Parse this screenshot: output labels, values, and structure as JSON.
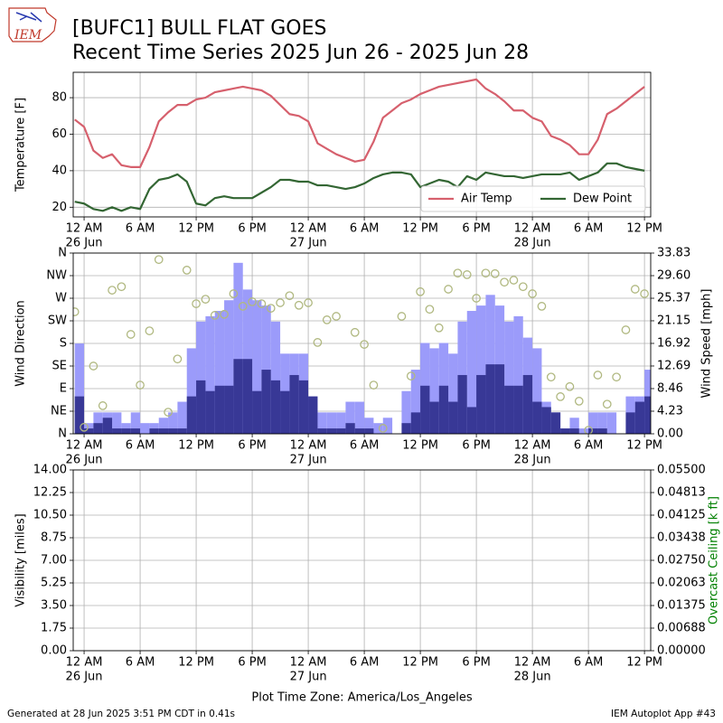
{
  "title": "[BUFC1] BULL FLAT GOES",
  "subtitle": "Recent Time Series 2025 Jun 26 - 2025 Jun 28",
  "logo_text": "IEM",
  "footer_left": "Generated at 28 Jun 2025 3:51 PM CDT in 0.41s",
  "footer_right": "IEM Autoplot App #43",
  "chart_data": [
    {
      "type": "line",
      "ylabel": "Temperature [F]",
      "xlim": [
        "2025-06-25 22:50",
        "2025-06-28 12:40"
      ],
      "xticks": [
        {
          "value": "2025-06-26 00:00",
          "label": "12 AM",
          "sublabel": "26 Jun"
        },
        {
          "value": "2025-06-26 06:00",
          "label": "6 AM"
        },
        {
          "value": "2025-06-26 12:00",
          "label": "12 PM"
        },
        {
          "value": "2025-06-26 18:00",
          "label": "6 PM"
        },
        {
          "value": "2025-06-27 00:00",
          "label": "12 AM",
          "sublabel": "27 Jun"
        },
        {
          "value": "2025-06-27 06:00",
          "label": "6 AM"
        },
        {
          "value": "2025-06-27 12:00",
          "label": "12 PM"
        },
        {
          "value": "2025-06-27 18:00",
          "label": "6 PM"
        },
        {
          "value": "2025-06-28 00:00",
          "label": "12 AM",
          "sublabel": "28 Jun"
        },
        {
          "value": "2025-06-28 06:00",
          "label": "6 AM"
        },
        {
          "value": "2025-06-28 12:00",
          "label": "12 PM"
        }
      ],
      "ylim": [
        14.7,
        93.9
      ],
      "yticks": [
        20,
        40,
        60,
        80
      ],
      "grid": true,
      "legend": "lower right",
      "x": [
        "2025-06-25 23:00",
        "2025-06-26 00:00",
        "2025-06-26 01:00",
        "2025-06-26 02:00",
        "2025-06-26 03:00",
        "2025-06-26 04:00",
        "2025-06-26 05:00",
        "2025-06-26 06:00",
        "2025-06-26 07:00",
        "2025-06-26 08:00",
        "2025-06-26 09:00",
        "2025-06-26 10:00",
        "2025-06-26 11:00",
        "2025-06-26 12:00",
        "2025-06-26 13:00",
        "2025-06-26 14:00",
        "2025-06-26 15:00",
        "2025-06-26 16:00",
        "2025-06-26 17:00",
        "2025-06-26 18:00",
        "2025-06-26 19:00",
        "2025-06-26 20:00",
        "2025-06-26 21:00",
        "2025-06-26 22:00",
        "2025-06-26 23:00",
        "2025-06-27 00:00",
        "2025-06-27 01:00",
        "2025-06-27 02:00",
        "2025-06-27 03:00",
        "2025-06-27 04:00",
        "2025-06-27 05:00",
        "2025-06-27 06:00",
        "2025-06-27 07:00",
        "2025-06-27 08:00",
        "2025-06-27 09:00",
        "2025-06-27 10:00",
        "2025-06-27 11:00",
        "2025-06-27 12:00",
        "2025-06-27 13:00",
        "2025-06-27 14:00",
        "2025-06-27 15:00",
        "2025-06-27 16:00",
        "2025-06-27 17:00",
        "2025-06-27 18:00",
        "2025-06-27 19:00",
        "2025-06-27 20:00",
        "2025-06-27 21:00",
        "2025-06-27 22:00",
        "2025-06-27 23:00",
        "2025-06-28 00:00",
        "2025-06-28 01:00",
        "2025-06-28 02:00",
        "2025-06-28 03:00",
        "2025-06-28 04:00",
        "2025-06-28 05:00",
        "2025-06-28 06:00",
        "2025-06-28 07:00",
        "2025-06-28 08:00",
        "2025-06-28 09:00",
        "2025-06-28 10:00",
        "2025-06-28 11:00",
        "2025-06-28 12:00"
      ],
      "series": [
        {
          "name": "Air Temp",
          "color": "#d6606d",
          "values": [
            68,
            64,
            51,
            47,
            49,
            43,
            42,
            42,
            53,
            67,
            72,
            76,
            76,
            79,
            80,
            83,
            84,
            85,
            86,
            85,
            84,
            81,
            76,
            71,
            70,
            67,
            55,
            52,
            49,
            47,
            45,
            46,
            56,
            69,
            73,
            77,
            79,
            82,
            84,
            86,
            87,
            88,
            89,
            90,
            85,
            82,
            78,
            73,
            73,
            69,
            67,
            59,
            57,
            54,
            49,
            49,
            57,
            71,
            74,
            78,
            82,
            86
          ]
        },
        {
          "name": "Dew Point",
          "color": "#336633",
          "values": [
            23,
            22,
            19,
            18,
            20,
            18,
            20,
            19,
            30,
            35,
            36,
            38,
            34,
            22,
            21,
            25,
            26,
            25,
            25,
            25,
            28,
            31,
            35,
            35,
            34,
            34,
            32,
            32,
            31,
            30,
            31,
            33,
            36,
            38,
            39,
            39,
            38,
            31,
            33,
            35,
            34,
            31,
            37,
            35,
            39,
            38,
            37,
            37,
            36,
            37,
            38,
            38,
            38,
            39,
            35,
            37,
            39,
            44,
            44,
            42,
            41,
            40
          ]
        }
      ]
    },
    {
      "type": "combo",
      "ylabel": "Wind Direction",
      "y2label": "Wind Speed [mph]",
      "xlim": [
        "2025-06-25 22:50",
        "2025-06-28 12:40"
      ],
      "xticks": [
        {
          "value": "2025-06-26 00:00",
          "label": "12 AM",
          "sublabel": "26 Jun"
        },
        {
          "value": "2025-06-26 06:00",
          "label": "6 AM"
        },
        {
          "value": "2025-06-26 12:00",
          "label": "12 PM"
        },
        {
          "value": "2025-06-26 18:00",
          "label": "6 PM"
        },
        {
          "value": "2025-06-27 00:00",
          "label": "12 AM",
          "sublabel": "27 Jun"
        },
        {
          "value": "2025-06-27 06:00",
          "label": "6 AM"
        },
        {
          "value": "2025-06-27 12:00",
          "label": "12 PM"
        },
        {
          "value": "2025-06-27 18:00",
          "label": "6 PM"
        },
        {
          "value": "2025-06-28 00:00",
          "label": "12 AM",
          "sublabel": "28 Jun"
        },
        {
          "value": "2025-06-28 06:00",
          "label": "6 AM"
        },
        {
          "value": "2025-06-28 12:00",
          "label": "12 PM"
        }
      ],
      "ylim": [
        0,
        360
      ],
      "yticks": [
        {
          "value": 0,
          "label": "N"
        },
        {
          "value": 45,
          "label": "NE"
        },
        {
          "value": 90,
          "label": "E"
        },
        {
          "value": 135,
          "label": "SE"
        },
        {
          "value": 180,
          "label": "S"
        },
        {
          "value": 225,
          "label": "SW"
        },
        {
          "value": 270,
          "label": "W"
        },
        {
          "value": 315,
          "label": "NW"
        },
        {
          "value": 360,
          "label": "N"
        }
      ],
      "y2lim": [
        0,
        33.83
      ],
      "y2ticks": [
        {
          "value": 0,
          "label": "0.00"
        },
        4.23,
        8.46,
        12.69,
        16.92,
        21.15,
        25.37,
        {
          "value": 29.6,
          "label": "29.60"
        },
        33.83
      ],
      "grid": true,
      "x": [
        "2025-06-25 23:00",
        "2025-06-26 00:00",
        "2025-06-26 01:00",
        "2025-06-26 02:00",
        "2025-06-26 03:00",
        "2025-06-26 04:00",
        "2025-06-26 05:00",
        "2025-06-26 06:00",
        "2025-06-26 07:00",
        "2025-06-26 08:00",
        "2025-06-26 09:00",
        "2025-06-26 10:00",
        "2025-06-26 11:00",
        "2025-06-26 12:00",
        "2025-06-26 13:00",
        "2025-06-26 14:00",
        "2025-06-26 15:00",
        "2025-06-26 16:00",
        "2025-06-26 17:00",
        "2025-06-26 18:00",
        "2025-06-26 19:00",
        "2025-06-26 20:00",
        "2025-06-26 21:00",
        "2025-06-26 22:00",
        "2025-06-26 23:00",
        "2025-06-27 00:00",
        "2025-06-27 01:00",
        "2025-06-27 02:00",
        "2025-06-27 03:00",
        "2025-06-27 04:00",
        "2025-06-27 05:00",
        "2025-06-27 06:00",
        "2025-06-27 07:00",
        "2025-06-27 08:00",
        "2025-06-27 09:00",
        "2025-06-27 10:00",
        "2025-06-27 11:00",
        "2025-06-27 12:00",
        "2025-06-27 13:00",
        "2025-06-27 14:00",
        "2025-06-27 15:00",
        "2025-06-27 16:00",
        "2025-06-27 17:00",
        "2025-06-27 18:00",
        "2025-06-27 19:00",
        "2025-06-27 20:00",
        "2025-06-27 21:00",
        "2025-06-27 22:00",
        "2025-06-27 23:00",
        "2025-06-28 00:00",
        "2025-06-28 01:00",
        "2025-06-28 02:00",
        "2025-06-28 03:00",
        "2025-06-28 04:00",
        "2025-06-28 05:00",
        "2025-06-28 06:00",
        "2025-06-28 07:00",
        "2025-06-28 08:00",
        "2025-06-28 09:00",
        "2025-06-28 10:00",
        "2025-06-28 11:00",
        "2025-06-28 12:00"
      ],
      "series": [
        {
          "type": "bar",
          "axis": "y2",
          "color": "#9b9bfa",
          "values": [
            16.9,
            2,
            4,
            4,
            4,
            2,
            4,
            2,
            2,
            3,
            4,
            6,
            16,
            21,
            22,
            23,
            25,
            32,
            27,
            25,
            24,
            21,
            15,
            15,
            15,
            7,
            4,
            4,
            4,
            6,
            6,
            3,
            2,
            3,
            0,
            8,
            12,
            17,
            16,
            17,
            15,
            21,
            23,
            24,
            26,
            24,
            21,
            22,
            18,
            16,
            6,
            4,
            1,
            3,
            1,
            4,
            4,
            4,
            0,
            7,
            7,
            12
          ]
        },
        {
          "type": "bar",
          "axis": "y2",
          "color": "#383896",
          "values": [
            7,
            1,
            2,
            3,
            1,
            1,
            1,
            0,
            1,
            1,
            1,
            1,
            7,
            10,
            8,
            9,
            9,
            14,
            14,
            8,
            12,
            10,
            8,
            11,
            10,
            7,
            1,
            1,
            1,
            2,
            1,
            1,
            0,
            0,
            0,
            2,
            4,
            9,
            6,
            9,
            6,
            11,
            5,
            11,
            13,
            13,
            9,
            9,
            11,
            6,
            5,
            4,
            1,
            1,
            0,
            1,
            1,
            0,
            0,
            4,
            6,
            7
          ]
        },
        {
          "type": "scatter",
          "color": "#b0b880",
          "values": [
            243,
            13,
            135,
            56,
            286,
            293,
            198,
            97,
            205,
            347,
            43,
            149,
            326,
            259,
            268,
            236,
            238,
            279,
            254,
            263,
            259,
            250,
            261,
            275,
            256,
            261,
            182,
            227,
            234,
            null,
            202,
            178,
            97,
            11,
            null,
            234,
            115,
            283,
            248,
            211,
            288,
            320,
            317,
            270,
            320,
            319,
            302,
            306,
            293,
            279,
            254,
            113,
            74,
            94,
            65,
            7,
            117,
            59,
            113,
            207,
            288,
            279
          ]
        }
      ]
    },
    {
      "type": "line",
      "ylabel": "Visibility [miles]",
      "y2label": "Overcast Ceiling [k ft]",
      "y2label_color": "#008000",
      "xlabel": "Plot Time Zone: America/Los_Angeles",
      "xlim": [
        "2025-06-25 22:50",
        "2025-06-28 12:40"
      ],
      "xticks": [
        {
          "value": "2025-06-26 00:00",
          "label": "12 AM",
          "sublabel": "26 Jun"
        },
        {
          "value": "2025-06-26 06:00",
          "label": "6 AM"
        },
        {
          "value": "2025-06-26 12:00",
          "label": "12 PM"
        },
        {
          "value": "2025-06-26 18:00",
          "label": "6 PM"
        },
        {
          "value": "2025-06-27 00:00",
          "label": "12 AM",
          "sublabel": "27 Jun"
        },
        {
          "value": "2025-06-27 06:00",
          "label": "6 AM"
        },
        {
          "value": "2025-06-27 12:00",
          "label": "12 PM"
        },
        {
          "value": "2025-06-27 18:00",
          "label": "6 PM"
        },
        {
          "value": "2025-06-28 00:00",
          "label": "12 AM",
          "sublabel": "28 Jun"
        },
        {
          "value": "2025-06-28 06:00",
          "label": "6 AM"
        },
        {
          "value": "2025-06-28 12:00",
          "label": "12 PM"
        }
      ],
      "ylim": [
        0,
        14
      ],
      "yticks": [
        {
          "value": 0,
          "label": "0.00"
        },
        1.75,
        {
          "value": 3.5,
          "label": "3.50"
        },
        5.25,
        {
          "value": 7,
          "label": "7.00"
        },
        8.75,
        {
          "value": 10.5,
          "label": "10.50"
        },
        12.25,
        {
          "value": 14,
          "label": "14.00"
        }
      ],
      "y2lim": [
        0,
        0.055
      ],
      "y2ticks": [
        {
          "value": 0,
          "label": "0.00000"
        },
        {
          "value": 0.006875,
          "label": "0.00688"
        },
        {
          "value": 0.01375,
          "label": "0.01375"
        },
        {
          "value": 0.020625,
          "label": "0.02063"
        },
        {
          "value": 0.0275,
          "label": "0.02750"
        },
        {
          "value": 0.034375,
          "label": "0.03438"
        },
        {
          "value": 0.04125,
          "label": "0.04125"
        },
        {
          "value": 0.048125,
          "label": "0.04813"
        },
        {
          "value": 0.055,
          "label": "0.05500"
        }
      ],
      "grid": true,
      "series": []
    }
  ]
}
